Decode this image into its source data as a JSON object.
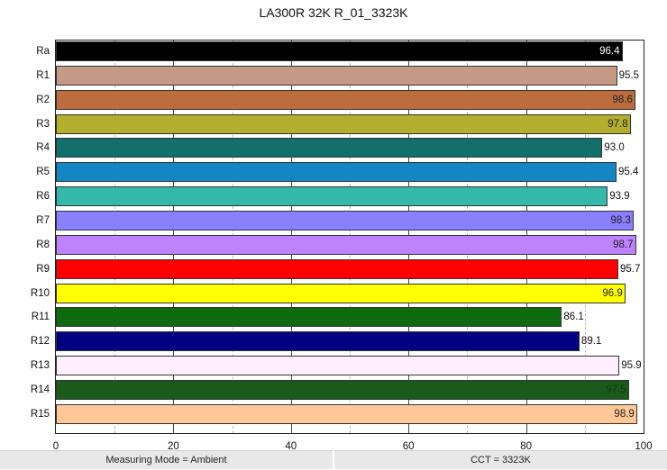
{
  "chart_data": {
    "type": "bar",
    "orientation": "horizontal",
    "title": "LA300R 32K R_01_3323K",
    "xlabel": "",
    "ylabel": "",
    "xlim": [
      0,
      100
    ],
    "xticks": [
      0,
      20,
      40,
      60,
      80,
      100
    ],
    "grid": {
      "major_step": 20,
      "minor_step": 10,
      "vertical": true
    },
    "categories": [
      "Ra",
      "R1",
      "R2",
      "R3",
      "R4",
      "R5",
      "R6",
      "R7",
      "R8",
      "R9",
      "R10",
      "R11",
      "R12",
      "R13",
      "R14",
      "R15"
    ],
    "values": [
      96.4,
      95.5,
      98.6,
      97.8,
      93.0,
      95.4,
      93.9,
      98.3,
      98.7,
      95.7,
      96.9,
      86.1,
      89.1,
      95.9,
      97.5,
      98.9
    ],
    "labels": [
      "96.4",
      "95.5",
      "98.6",
      "97.8",
      "93.0",
      "95.4",
      "93.9",
      "98.3",
      "98.7",
      "95.7",
      "96.9",
      "86.1",
      "89.1",
      "95.9",
      "97.5",
      "98.9"
    ],
    "colors": [
      "#000000",
      "#c49a86",
      "#bd6c3e",
      "#b3ae2e",
      "#11706c",
      "#1486c4",
      "#33b8aa",
      "#8a80ff",
      "#bf82ff",
      "#ff0000",
      "#ffff00",
      "#0f6a0f",
      "#000080",
      "#ffeefc",
      "#1a5a1a",
      "#ffc896"
    ],
    "label_inside": [
      true,
      false,
      true,
      true,
      false,
      false,
      false,
      true,
      true,
      false,
      true,
      false,
      false,
      false,
      true,
      true
    ],
    "label_colors": [
      "#ffffff",
      "#111111",
      "#222222",
      "#222222",
      "#111111",
      "#111111",
      "#111111",
      "#222222",
      "#222222",
      "#111111",
      "#222222",
      "#111111",
      "#111111",
      "#111111",
      "#123812",
      "#222222"
    ]
  },
  "footer": {
    "measuring_mode": "Measuring Mode = Ambient",
    "cct": "CCT = 3323K"
  }
}
